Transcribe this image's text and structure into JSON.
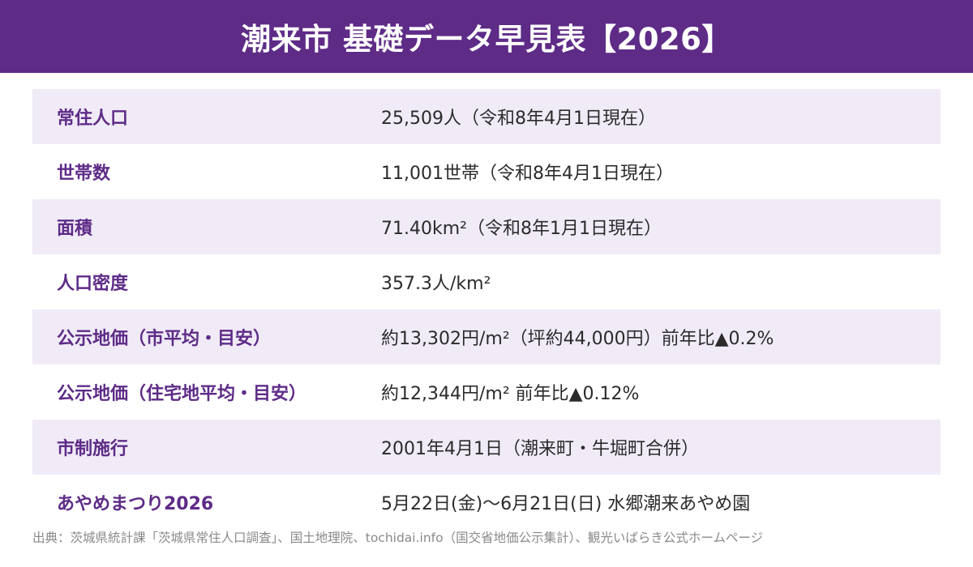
{
  "header": {
    "title": "潮来市 基礎データ早見表【2026】"
  },
  "colors": {
    "header_bg": "#5e2b87",
    "label_text": "#5e2b87",
    "row_shade": "#f0ebf7",
    "value_text": "#2b2b2b",
    "source_text": "#8a8a8a"
  },
  "rows": [
    {
      "label": "常住人口",
      "value": "25,509人（令和8年4月1日現在）"
    },
    {
      "label": "世帯数",
      "value": "11,001世帯（令和8年4月1日現在）"
    },
    {
      "label": "面積",
      "value": "71.40km²（令和8年1月1日現在）"
    },
    {
      "label": "人口密度",
      "value": "357.3人/km²"
    },
    {
      "label": "公示地価（市平均・目安）",
      "value": "約13,302円/m²（坪約44,000円）前年比▲0.2%"
    },
    {
      "label": "公示地価（住宅地平均・目安）",
      "value": "約12,344円/m² 前年比▲0.12%"
    },
    {
      "label": "市制施行",
      "value": "2001年4月1日（潮来町・牛堀町合併）"
    },
    {
      "label": "あやめまつり2026",
      "value": "5月22日(金)〜6月21日(日) 水郷潮来あやめ園"
    }
  ],
  "source": "出典：茨城県統計課「茨城県常住人口調査」、国土地理院、tochidai.info（国交省地価公示集計）、観光いばらき公式ホームページ"
}
